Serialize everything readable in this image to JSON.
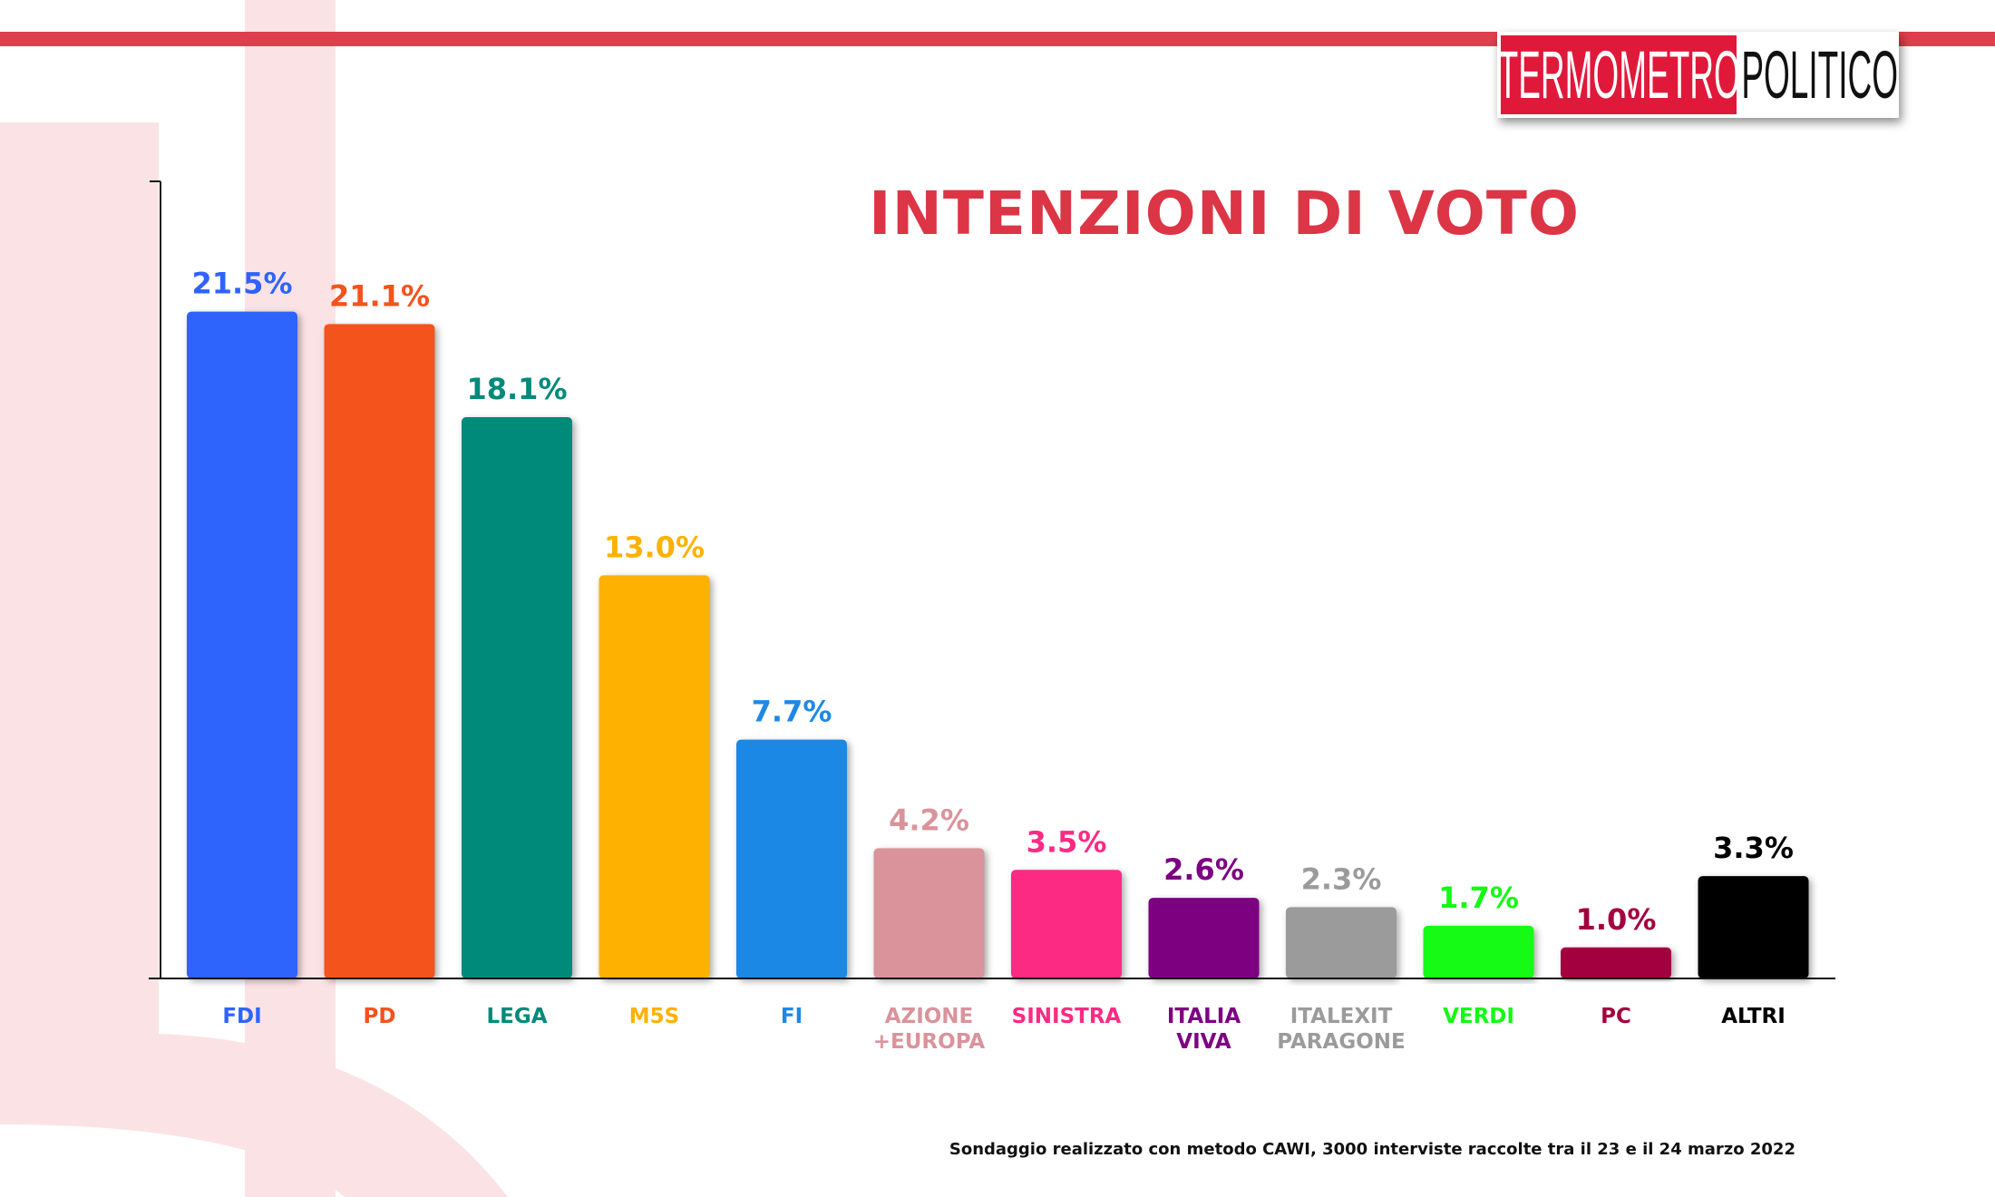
{
  "logo": {
    "part1": "TERMOMETRO",
    "part2": "POLITICO"
  },
  "colors": {
    "brand_red": "#e0193a",
    "title_red": "#dc3545",
    "stripe": "#df3f4c",
    "background_shape": "#fbe3e5"
  },
  "chart_data": {
    "type": "bar",
    "title": "INTENZIONI DI VOTO",
    "categories": [
      [
        "FDI"
      ],
      [
        "PD"
      ],
      [
        "LEGA"
      ],
      [
        "M5S"
      ],
      [
        "FI"
      ],
      [
        "AZIONE",
        "+EUROPA"
      ],
      [
        "SINISTRA"
      ],
      [
        "ITALIA",
        "VIVA"
      ],
      [
        "ITALEXIT",
        "PARAGONE"
      ],
      [
        "VERDI"
      ],
      [
        "PC"
      ],
      [
        "ALTRI"
      ]
    ],
    "values": [
      21.5,
      21.1,
      18.1,
      13.0,
      7.7,
      4.2,
      3.5,
      2.6,
      2.3,
      1.7,
      1.0,
      3.3
    ],
    "labels": [
      "21.5%",
      "21.1%",
      "18.1%",
      "13.0%",
      "7.7%",
      "4.2%",
      "3.5%",
      "2.6%",
      "2.3%",
      "1.7%",
      "1.0%",
      "3.3%"
    ],
    "colors": [
      "#2f63fc",
      "#f5521e",
      "#008a7a",
      "#ffb100",
      "#1e88e5",
      "#da939b",
      "#fd2a84",
      "#7d0081",
      "#9b9b9b",
      "#12fb12",
      "#a3003f",
      "#000000"
    ],
    "ylim": [
      0,
      25.7
    ],
    "grid": false,
    "legend": "none"
  },
  "footnote": "Sondaggio realizzato con metodo CAWI, 3000 interviste raccolte tra il 23 e il 24 marzo 2022"
}
